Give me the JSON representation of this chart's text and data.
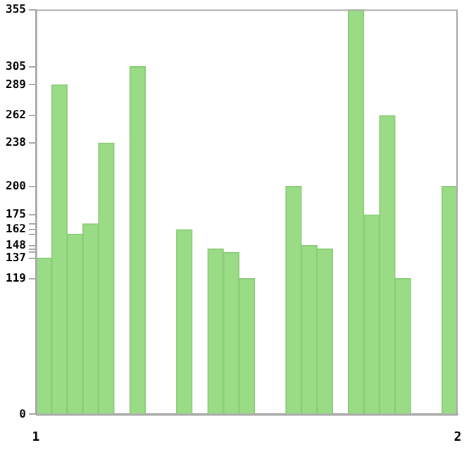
{
  "chart_data": {
    "type": "bar",
    "color": "#9adc86",
    "x": [
      1.019,
      1.056,
      1.093,
      1.13,
      1.167,
      1.204,
      1.241,
      1.278,
      1.315,
      1.352,
      1.389,
      1.426,
      1.463,
      1.5,
      1.537,
      1.574,
      1.611,
      1.648,
      1.685,
      1.722,
      1.759,
      1.796,
      1.833,
      1.87,
      1.907,
      1.944,
      1.981
    ],
    "values": [
      137,
      289,
      158,
      167,
      238,
      0,
      305,
      0,
      0,
      162,
      0,
      145,
      142,
      119,
      0,
      0,
      200,
      148,
      145,
      0,
      355,
      175,
      262,
      119,
      0,
      0,
      200
    ],
    "xlim": [
      1,
      2
    ],
    "xticks": [
      1,
      2
    ],
    "ylim": [
      0,
      355
    ],
    "yticks": [
      0,
      119,
      137,
      {
        "value": 142,
        "label": null
      },
      {
        "value": 145,
        "label": null
      },
      148,
      {
        "value": 158,
        "label": null
      },
      162,
      {
        "value": 167,
        "label": null
      },
      175,
      200,
      238,
      262,
      289,
      305,
      355
    ],
    "grid": false,
    "legend": false
  }
}
